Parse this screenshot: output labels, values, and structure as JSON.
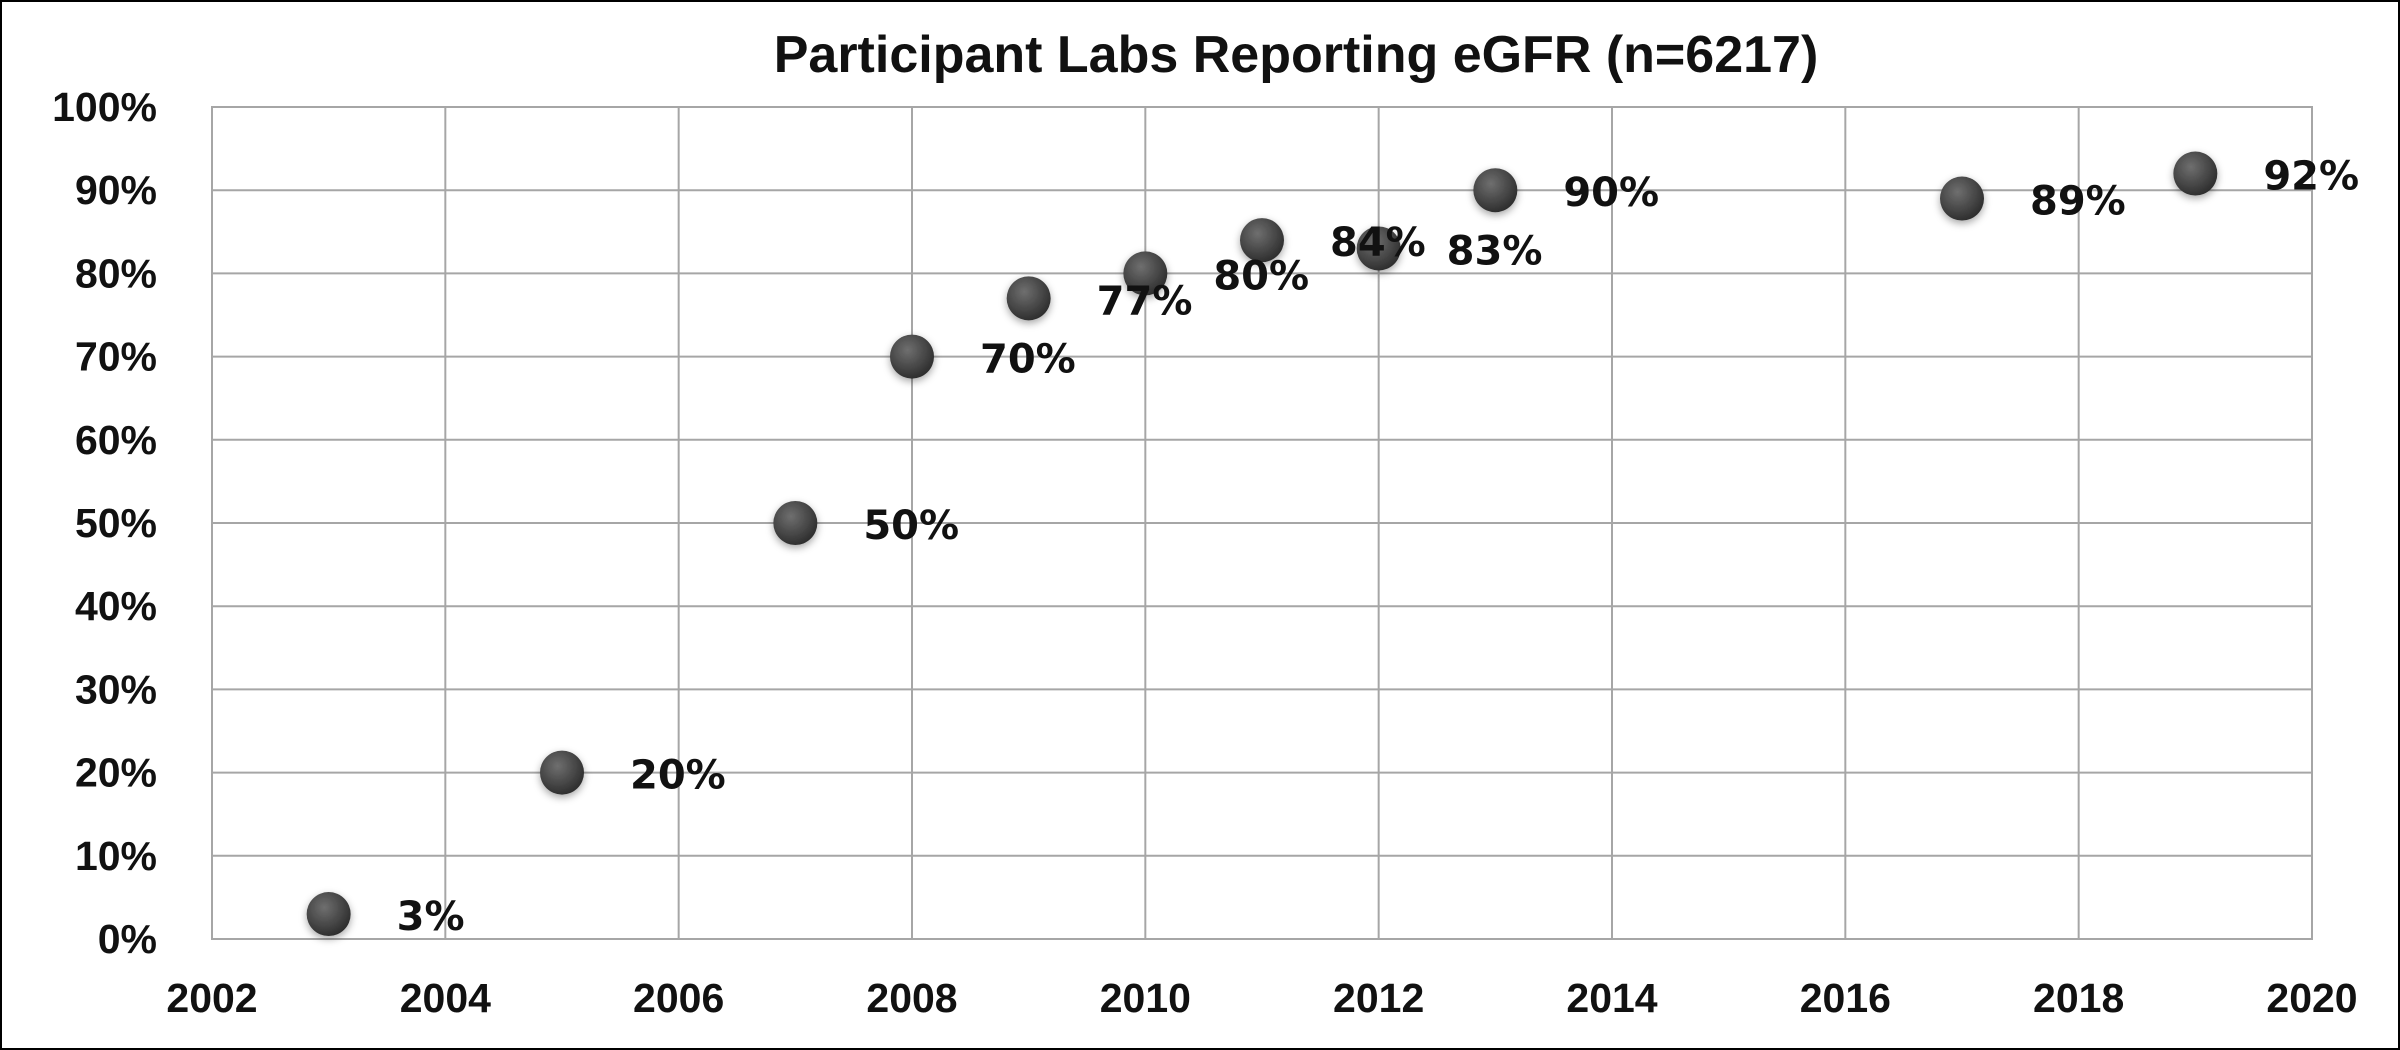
{
  "chart_data": {
    "type": "scatter",
    "title": "Participant Labs Reporting eGFR (n=6217)",
    "xlabel": "",
    "ylabel": "",
    "xlim": [
      2002,
      2020
    ],
    "ylim": [
      0,
      100
    ],
    "x_ticks": [
      "2002",
      "2004",
      "2006",
      "2008",
      "2010",
      "2012",
      "2014",
      "2016",
      "2018",
      "2020"
    ],
    "y_ticks": [
      "0%",
      "10%",
      "20%",
      "30%",
      "40%",
      "50%",
      "60%",
      "70%",
      "80%",
      "90%",
      "100%"
    ],
    "grid": true,
    "legend": "none",
    "marker_color": "#4a4a4a",
    "points": [
      {
        "x": 2003,
        "y": 3,
        "label": "3%"
      },
      {
        "x": 2005,
        "y": 20,
        "label": "20%"
      },
      {
        "x": 2007,
        "y": 50,
        "label": "50%"
      },
      {
        "x": 2008,
        "y": 70,
        "label": "70%"
      },
      {
        "x": 2009,
        "y": 77,
        "label": "77%"
      },
      {
        "x": 2010,
        "y": 80,
        "label": "80%"
      },
      {
        "x": 2011,
        "y": 84,
        "label": "84%"
      },
      {
        "x": 2012,
        "y": 83,
        "label": "83%"
      },
      {
        "x": 2013,
        "y": 90,
        "label": "90%"
      },
      {
        "x": 2017,
        "y": 89,
        "label": "89%"
      },
      {
        "x": 2019,
        "y": 92,
        "label": "92%"
      }
    ]
  }
}
